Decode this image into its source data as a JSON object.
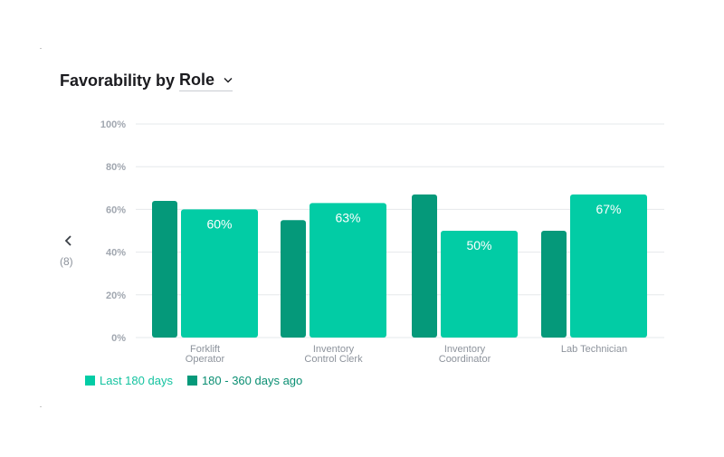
{
  "header": {
    "title_prefix": "Favorability by",
    "role_select_value": "Role",
    "chevron_icon": "chevron-down-icon"
  },
  "pager": {
    "prev_icon": "chevron-left-icon",
    "count_label": "(8)"
  },
  "colors": {
    "recent": "#02ccA5",
    "previous": "#05997a",
    "legend_recent_text": "#14c3a0",
    "legend_previous_text": "#0b8f73",
    "grid": "#e6e8eb",
    "tick_text": "#a1a7b0",
    "category_text": "#8d939c",
    "bar_label": "#ffffff"
  },
  "chart_data": {
    "type": "bar",
    "categories": [
      [
        "Forklift",
        "Operator"
      ],
      [
        "Inventory",
        "Control Clerk"
      ],
      [
        "Inventory",
        "Coordinator"
      ],
      [
        "Lab Technician"
      ]
    ],
    "series": [
      {
        "name": "180 - 360 days ago",
        "values": [
          64,
          55,
          67,
          50
        ]
      },
      {
        "name": "Last 180 days",
        "values": [
          60,
          63,
          50,
          67
        ],
        "labels": [
          "60%",
          "63%",
          "50%",
          "67%"
        ]
      }
    ],
    "y_ticks": [
      "0%",
      "20%",
      "40%",
      "60%",
      "80%",
      "100%"
    ],
    "ylim": [
      0,
      100
    ],
    "grid": true,
    "legend_position": "bottom-left"
  },
  "legend": {
    "items": [
      {
        "label": "Last 180 days"
      },
      {
        "label": "180 - 360 days ago"
      }
    ]
  }
}
